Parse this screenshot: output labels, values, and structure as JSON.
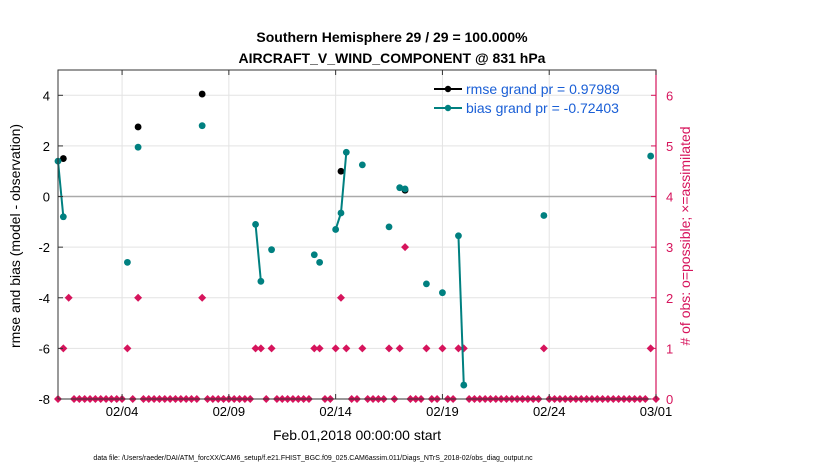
{
  "chart_data": {
    "type": "line",
    "title": [
      "Southern Hemisphere 29 / 29 = 100.000%",
      "AIRCRAFT_V_WIND_COMPONENT @ 831 hPa"
    ],
    "xlabel": "Feb.01,2018 00:00:00 start",
    "ylabel": "rmse and bias (model - observation)",
    "ylabel_right": "# of obs: o=possible; ×=assimilated",
    "xlim": [
      0,
      28
    ],
    "ylim": [
      -8,
      5
    ],
    "ylim_right": [
      0,
      6.5
    ],
    "x_ticks": [
      3,
      8,
      13,
      18,
      23,
      28
    ],
    "x_tick_labels": [
      "02/04",
      "02/09",
      "02/14",
      "02/19",
      "02/24",
      "03/01"
    ],
    "y_ticks": [
      -8,
      -6,
      -4,
      -2,
      0,
      2,
      4
    ],
    "y_tick_labels": [
      "-8",
      "-6",
      "-4",
      "-2",
      "0",
      "2",
      "4"
    ],
    "y_ticks_right": [
      0,
      1,
      2,
      3,
      4,
      5,
      6
    ],
    "y_tick_labels_right": [
      "0",
      "1",
      "2",
      "3",
      "4",
      "5",
      "6"
    ],
    "grid": true,
    "legend_position": "top-right",
    "colors": {
      "rmse": "#000000",
      "bias": "#008080",
      "obs": "#d6145c",
      "zero_line": "#aaaaaa",
      "legend_text": "#1a5fd6"
    },
    "series": [
      {
        "name": "rmse grand pr = 0.97989",
        "segments": [
          [
            [
              0.25,
              1.5
            ]
          ],
          [
            [
              3.75,
              2.75
            ]
          ],
          [
            [
              6.75,
              4.05
            ]
          ],
          [
            [
              13.25,
              1.0
            ]
          ],
          [
            [
              16.25,
              0.25
            ]
          ]
        ]
      },
      {
        "name": "bias grand pr = -0.72403",
        "segments": [
          [
            [
              0.0,
              1.4
            ],
            [
              0.25,
              -0.8
            ]
          ],
          [
            [
              3.25,
              -2.6
            ]
          ],
          [
            [
              3.75,
              1.95
            ]
          ],
          [
            [
              6.75,
              2.8
            ]
          ],
          [
            [
              9.25,
              -1.1
            ],
            [
              9.5,
              -3.35
            ]
          ],
          [
            [
              10.0,
              -2.1
            ]
          ],
          [
            [
              12.0,
              -2.3
            ]
          ],
          [
            [
              12.25,
              -2.6
            ]
          ],
          [
            [
              13.0,
              -1.3
            ],
            [
              13.25,
              -0.65
            ],
            [
              13.5,
              1.75
            ]
          ],
          [
            [
              14.25,
              1.25
            ]
          ],
          [
            [
              15.5,
              -1.2
            ]
          ],
          [
            [
              16.0,
              0.35
            ],
            [
              16.25,
              0.3
            ]
          ],
          [
            [
              17.25,
              -3.45
            ]
          ],
          [
            [
              18.0,
              -3.8
            ]
          ],
          [
            [
              18.75,
              -1.55
            ],
            [
              19.0,
              -7.45
            ]
          ],
          [
            [
              22.75,
              -0.75
            ]
          ],
          [
            [
              27.75,
              1.6
            ]
          ]
        ]
      },
      {
        "name": "obs",
        "points": [
          [
            0,
            0
          ],
          [
            0.25,
            1
          ],
          [
            0.5,
            2
          ],
          [
            0.75,
            0
          ],
          [
            1,
            0
          ],
          [
            1.25,
            0
          ],
          [
            1.5,
            0
          ],
          [
            1.75,
            0
          ],
          [
            2,
            0
          ],
          [
            2.25,
            0
          ],
          [
            2.5,
            0
          ],
          [
            2.75,
            0
          ],
          [
            3,
            0
          ],
          [
            3.25,
            1
          ],
          [
            3.5,
            0
          ],
          [
            3.75,
            2
          ],
          [
            4,
            0
          ],
          [
            4.25,
            0
          ],
          [
            4.5,
            0
          ],
          [
            4.75,
            0
          ],
          [
            5,
            0
          ],
          [
            5.25,
            0
          ],
          [
            5.5,
            0
          ],
          [
            5.75,
            0
          ],
          [
            6,
            0
          ],
          [
            6.25,
            0
          ],
          [
            6.5,
            0
          ],
          [
            6.75,
            2
          ],
          [
            7,
            0
          ],
          [
            7.25,
            0
          ],
          [
            7.5,
            0
          ],
          [
            7.75,
            0
          ],
          [
            8,
            0
          ],
          [
            8.25,
            0
          ],
          [
            8.5,
            0
          ],
          [
            8.75,
            0
          ],
          [
            9,
            0
          ],
          [
            9.25,
            1
          ],
          [
            9.5,
            1
          ],
          [
            9.75,
            0
          ],
          [
            10,
            1
          ],
          [
            10.25,
            0
          ],
          [
            10.5,
            0
          ],
          [
            10.75,
            0
          ],
          [
            11,
            0
          ],
          [
            11.25,
            0
          ],
          [
            11.5,
            0
          ],
          [
            11.75,
            0
          ],
          [
            12,
            1
          ],
          [
            12.25,
            1
          ],
          [
            12.5,
            0
          ],
          [
            12.75,
            0
          ],
          [
            13,
            1
          ],
          [
            13.25,
            2
          ],
          [
            13.5,
            1
          ],
          [
            13.75,
            0
          ],
          [
            14,
            0
          ],
          [
            14.25,
            1
          ],
          [
            14.5,
            0
          ],
          [
            14.75,
            0
          ],
          [
            15,
            0
          ],
          [
            15.25,
            0
          ],
          [
            15.5,
            1
          ],
          [
            15.75,
            0
          ],
          [
            16,
            1
          ],
          [
            16.25,
            3
          ],
          [
            16.5,
            0
          ],
          [
            16.75,
            0
          ],
          [
            17,
            0
          ],
          [
            17.25,
            1
          ],
          [
            17.5,
            0
          ],
          [
            17.75,
            0
          ],
          [
            18,
            1
          ],
          [
            18.25,
            0
          ],
          [
            18.5,
            0
          ],
          [
            18.75,
            1
          ],
          [
            19,
            1
          ],
          [
            19.25,
            0
          ],
          [
            19.5,
            0
          ],
          [
            19.75,
            0
          ],
          [
            20,
            0
          ],
          [
            20.25,
            0
          ],
          [
            20.5,
            0
          ],
          [
            20.75,
            0
          ],
          [
            21,
            0
          ],
          [
            21.25,
            0
          ],
          [
            21.5,
            0
          ],
          [
            21.75,
            0
          ],
          [
            22,
            0
          ],
          [
            22.25,
            0
          ],
          [
            22.5,
            0
          ],
          [
            22.75,
            1
          ],
          [
            23,
            0
          ],
          [
            23.25,
            0
          ],
          [
            23.5,
            0
          ],
          [
            23.75,
            0
          ],
          [
            24,
            0
          ],
          [
            24.25,
            0
          ],
          [
            24.5,
            0
          ],
          [
            24.75,
            0
          ],
          [
            25,
            0
          ],
          [
            25.25,
            0
          ],
          [
            25.5,
            0
          ],
          [
            25.75,
            0
          ],
          [
            26,
            0
          ],
          [
            26.25,
            0
          ],
          [
            26.5,
            0
          ],
          [
            26.75,
            0
          ],
          [
            27,
            0
          ],
          [
            27.25,
            0
          ],
          [
            27.5,
            0
          ],
          [
            27.75,
            1
          ],
          [
            28,
            0
          ]
        ]
      }
    ],
    "footnote": "data file: /Users/raeder/DAI/ATM_forcXX/CAM6_setup/f.e21.FHIST_BGC.f09_025.CAM6assim.011/Diags_NTrS_2018-02/obs_diag_output.nc"
  }
}
